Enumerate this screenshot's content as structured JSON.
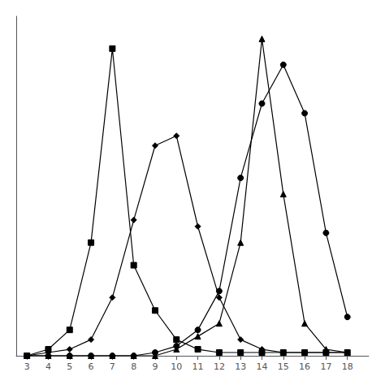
{
  "chart_data": {
    "type": "line",
    "x": [
      3,
      4,
      5,
      6,
      7,
      8,
      9,
      10,
      11,
      12,
      13,
      14,
      15,
      16,
      17,
      18
    ],
    "series": [
      {
        "color": "#000000",
        "marker": "square",
        "values": [
          0,
          2,
          8,
          35,
          95,
          28,
          14,
          5,
          2,
          1,
          1,
          1,
          1,
          1,
          1,
          1
        ]
      },
      {
        "color": "#000000",
        "marker": "diamond",
        "values": [
          0,
          1,
          2,
          5,
          18,
          42,
          65,
          68,
          40,
          18,
          5,
          2,
          1,
          1,
          1,
          1
        ]
      },
      {
        "color": "#000000",
        "marker": "triangle",
        "values": [
          0,
          0,
          0,
          0,
          0,
          0,
          0,
          2,
          6,
          10,
          35,
          98,
          50,
          10,
          2,
          1
        ]
      },
      {
        "color": "#000000",
        "marker": "circle",
        "values": [
          0,
          0,
          0,
          0,
          0,
          0,
          1,
          3,
          8,
          20,
          55,
          78,
          90,
          75,
          38,
          12
        ]
      }
    ],
    "xlim": [
      2.5,
      19
    ],
    "ylim": [
      0,
      105
    ],
    "xticks": [
      3,
      4,
      5,
      6,
      7,
      8,
      9,
      10,
      11,
      12,
      13,
      14,
      15,
      16,
      17,
      18
    ],
    "grid": false,
    "tick_labels": "x"
  }
}
